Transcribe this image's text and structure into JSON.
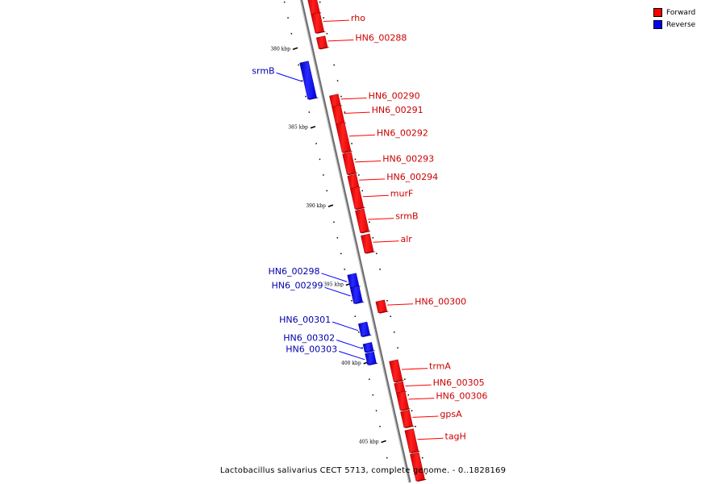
{
  "legend": {
    "forward_label": "Forward",
    "reverse_label": "Reverse",
    "forward_color": "#ff0000",
    "reverse_color": "#0000ff"
  },
  "caption": "Lactobacillus salivarius CECT 5713, complete genome. - 0..1828169",
  "axis": {
    "start_kbp": 376.8,
    "end_kbp": 407.6
  },
  "ticks": [
    {
      "kbp": 380,
      "label": "380 kbp"
    },
    {
      "kbp": 385,
      "label": "385 kbp"
    },
    {
      "kbp": 390,
      "label": "390 kbp"
    },
    {
      "kbp": 395,
      "label": "395 kbp"
    },
    {
      "kbp": 400,
      "label": "400 kbp"
    },
    {
      "kbp": 405,
      "label": "405 kbp"
    }
  ],
  "genes": [
    {
      "name": "",
      "strand": "forward",
      "start": 376.8,
      "end": 377.9
    },
    {
      "name": "rho",
      "strand": "forward",
      "start": 377.9,
      "end": 379.1
    },
    {
      "name": "HN6_00288",
      "strand": "forward",
      "start": 379.4,
      "end": 380.1
    },
    {
      "name": "srmB",
      "strand": "reverse",
      "start": 380.7,
      "end": 383.0
    },
    {
      "name": "HN6_00290",
      "strand": "forward",
      "start": 383.1,
      "end": 383.8
    },
    {
      "name": "HN6_00291",
      "strand": "forward",
      "start": 383.8,
      "end": 384.9
    },
    {
      "name": "HN6_00292",
      "strand": "forward",
      "start": 384.9,
      "end": 386.7
    },
    {
      "name": "HN6_00293",
      "strand": "forward",
      "start": 386.8,
      "end": 388.1
    },
    {
      "name": "HN6_00294",
      "strand": "forward",
      "start": 388.2,
      "end": 389.0
    },
    {
      "name": "murF",
      "strand": "forward",
      "start": 389.0,
      "end": 390.3
    },
    {
      "name": "srmB",
      "strand": "forward",
      "start": 390.4,
      "end": 391.8
    },
    {
      "name": "alr",
      "strand": "forward",
      "start": 392.0,
      "end": 393.1
    },
    {
      "name": "HN6_00298",
      "strand": "reverse",
      "start": 394.2,
      "end": 395.0
    },
    {
      "name": "HN6_00299",
      "strand": "reverse",
      "start": 395.0,
      "end": 396.0
    },
    {
      "name": "HN6_00300",
      "strand": "forward",
      "start": 396.2,
      "end": 396.9
    },
    {
      "name": "HN6_00301",
      "strand": "reverse",
      "start": 397.3,
      "end": 398.1
    },
    {
      "name": "HN6_00302",
      "strand": "reverse",
      "start": 398.6,
      "end": 399.1
    },
    {
      "name": "HN6_00303",
      "strand": "reverse",
      "start": 399.2,
      "end": 399.9
    },
    {
      "name": "trmA",
      "strand": "forward",
      "start": 400.0,
      "end": 401.3
    },
    {
      "name": "HN6_00305",
      "strand": "forward",
      "start": 401.4,
      "end": 402.0
    },
    {
      "name": "HN6_00306",
      "strand": "forward",
      "start": 402.0,
      "end": 403.1
    },
    {
      "name": "gpsA",
      "strand": "forward",
      "start": 403.2,
      "end": 404.2
    },
    {
      "name": "tagH",
      "strand": "forward",
      "start": 404.4,
      "end": 405.8
    },
    {
      "name": "",
      "strand": "forward",
      "start": 405.9,
      "end": 407.6
    }
  ]
}
